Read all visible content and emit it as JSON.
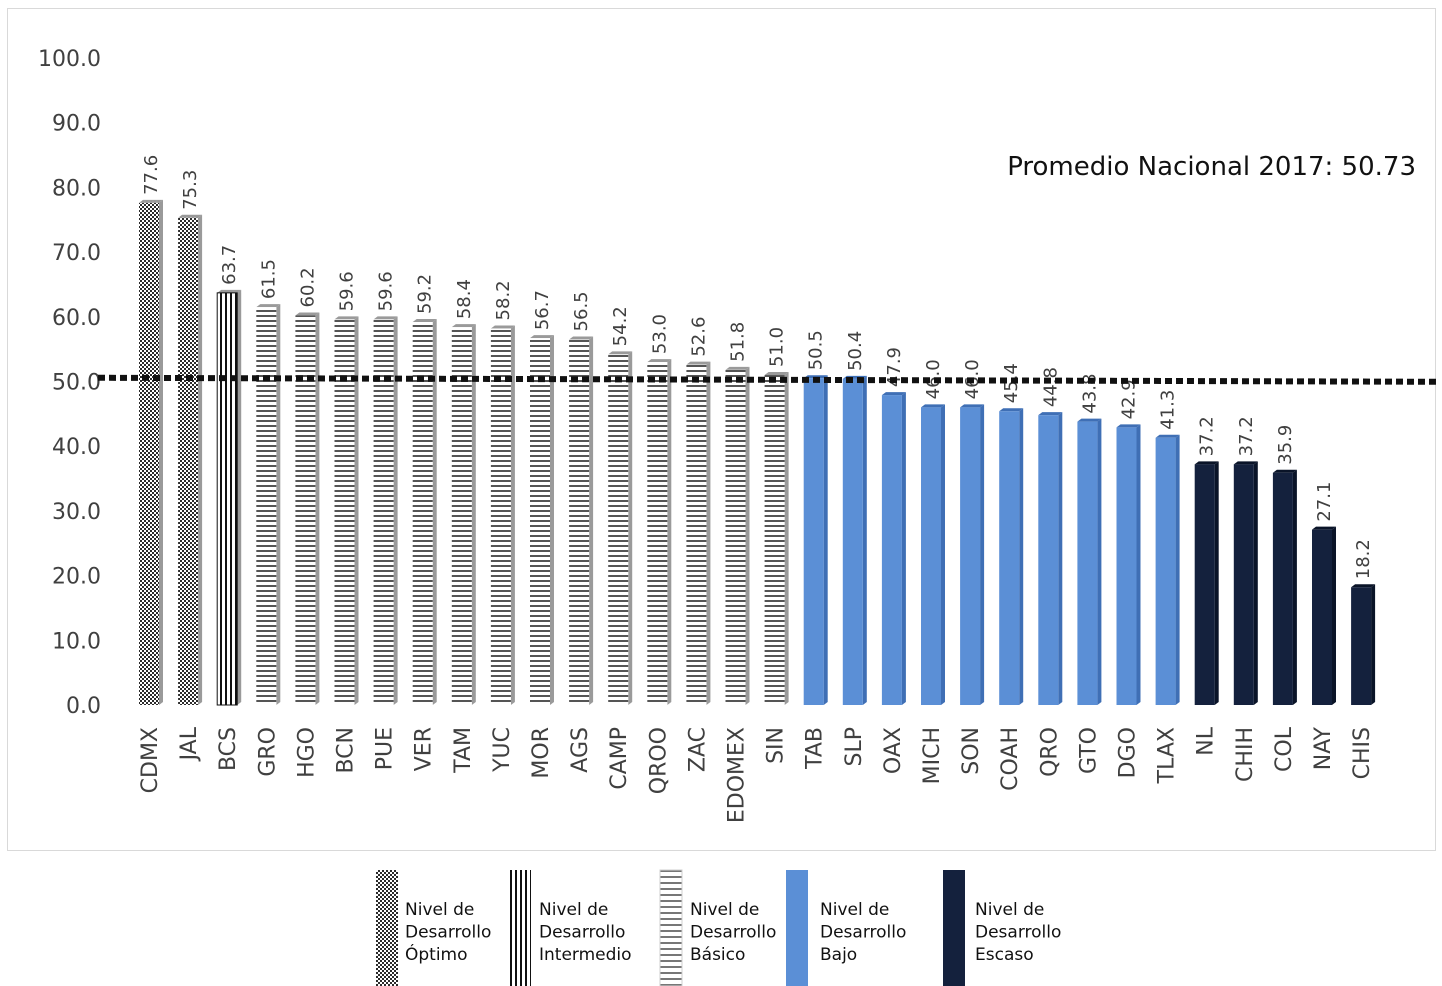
{
  "chart_data": {
    "type": "bar",
    "categories": [
      "CDMX",
      "JAL",
      "BCS",
      "GRO",
      "HGO",
      "BCN",
      "PUE",
      "VER",
      "TAM",
      "YUC",
      "MOR",
      "AGS",
      "CAMP",
      "QROO",
      "ZAC",
      "EDOMEX",
      "SIN",
      "TAB",
      "SLP",
      "OAX",
      "MICH",
      "SON",
      "COAH",
      "QRO",
      "GTO",
      "DGO",
      "TLAX",
      "NL",
      "CHIH",
      "COL",
      "NAY",
      "CHIS"
    ],
    "values": [
      77.6,
      75.3,
      63.7,
      61.5,
      60.2,
      59.6,
      59.6,
      59.2,
      58.4,
      58.2,
      56.7,
      56.5,
      54.2,
      53.0,
      52.6,
      51.8,
      51.0,
      50.5,
      50.4,
      47.9,
      46.0,
      46.0,
      45.4,
      44.8,
      43.8,
      42.9,
      41.3,
      37.2,
      37.2,
      35.9,
      27.1,
      18.2
    ],
    "value_labels": [
      "77.6",
      "75.3",
      "63.7",
      "61.5",
      "60.2",
      "59.6",
      "59.6",
      "59.2",
      "58.4",
      "58.2",
      "56.7",
      "56.5",
      "54.2",
      "53.0",
      "52.6",
      "51.8",
      "51.0",
      "50.5",
      "50.4",
      "47.9",
      "46.0",
      "46.0",
      "45.4",
      "44.8",
      "43.8",
      "42.9",
      "41.3",
      "37.2",
      "37.2",
      "35.9",
      "27.1",
      "18.2"
    ],
    "levels": [
      "optimo",
      "optimo",
      "intermedio",
      "basico",
      "basico",
      "basico",
      "basico",
      "basico",
      "basico",
      "basico",
      "basico",
      "basico",
      "basico",
      "basico",
      "basico",
      "basico",
      "basico",
      "bajo",
      "bajo",
      "bajo",
      "bajo",
      "bajo",
      "bajo",
      "bajo",
      "bajo",
      "bajo",
      "bajo",
      "escaso",
      "escaso",
      "escaso",
      "escaso",
      "escaso"
    ],
    "ylim": [
      0,
      100
    ],
    "yticks": [
      "0.0",
      "10.0",
      "20.0",
      "30.0",
      "40.0",
      "50.0",
      "60.0",
      "70.0",
      "80.0",
      "90.0",
      "100.0"
    ],
    "ytick_values": [
      0,
      10,
      20,
      30,
      40,
      50,
      60,
      70,
      80,
      90,
      100
    ],
    "average": {
      "value": 50.73,
      "label": "Promedio Nacional 2017: 50.73"
    },
    "grid": false,
    "legend_position": "bottom",
    "colors": {
      "bajo": "#5b8fd6",
      "escaso": "#14213d",
      "optimo": "#333333",
      "intermedio": "#111111",
      "basico": "#555555"
    }
  },
  "legend": [
    {
      "key": "optimo",
      "lines": [
        "Nivel de",
        "Desarrollo",
        "Óptimo"
      ]
    },
    {
      "key": "intermedio",
      "lines": [
        "Nivel de",
        "Desarrollo",
        "Intermedio"
      ]
    },
    {
      "key": "basico",
      "lines": [
        "Nivel de",
        "Desarrollo",
        "Básico"
      ]
    },
    {
      "key": "bajo",
      "lines": [
        "Nivel de",
        "Desarrollo",
        "Bajo"
      ]
    },
    {
      "key": "escaso",
      "lines": [
        "Nivel de",
        "Desarrollo",
        "Escaso"
      ]
    }
  ]
}
